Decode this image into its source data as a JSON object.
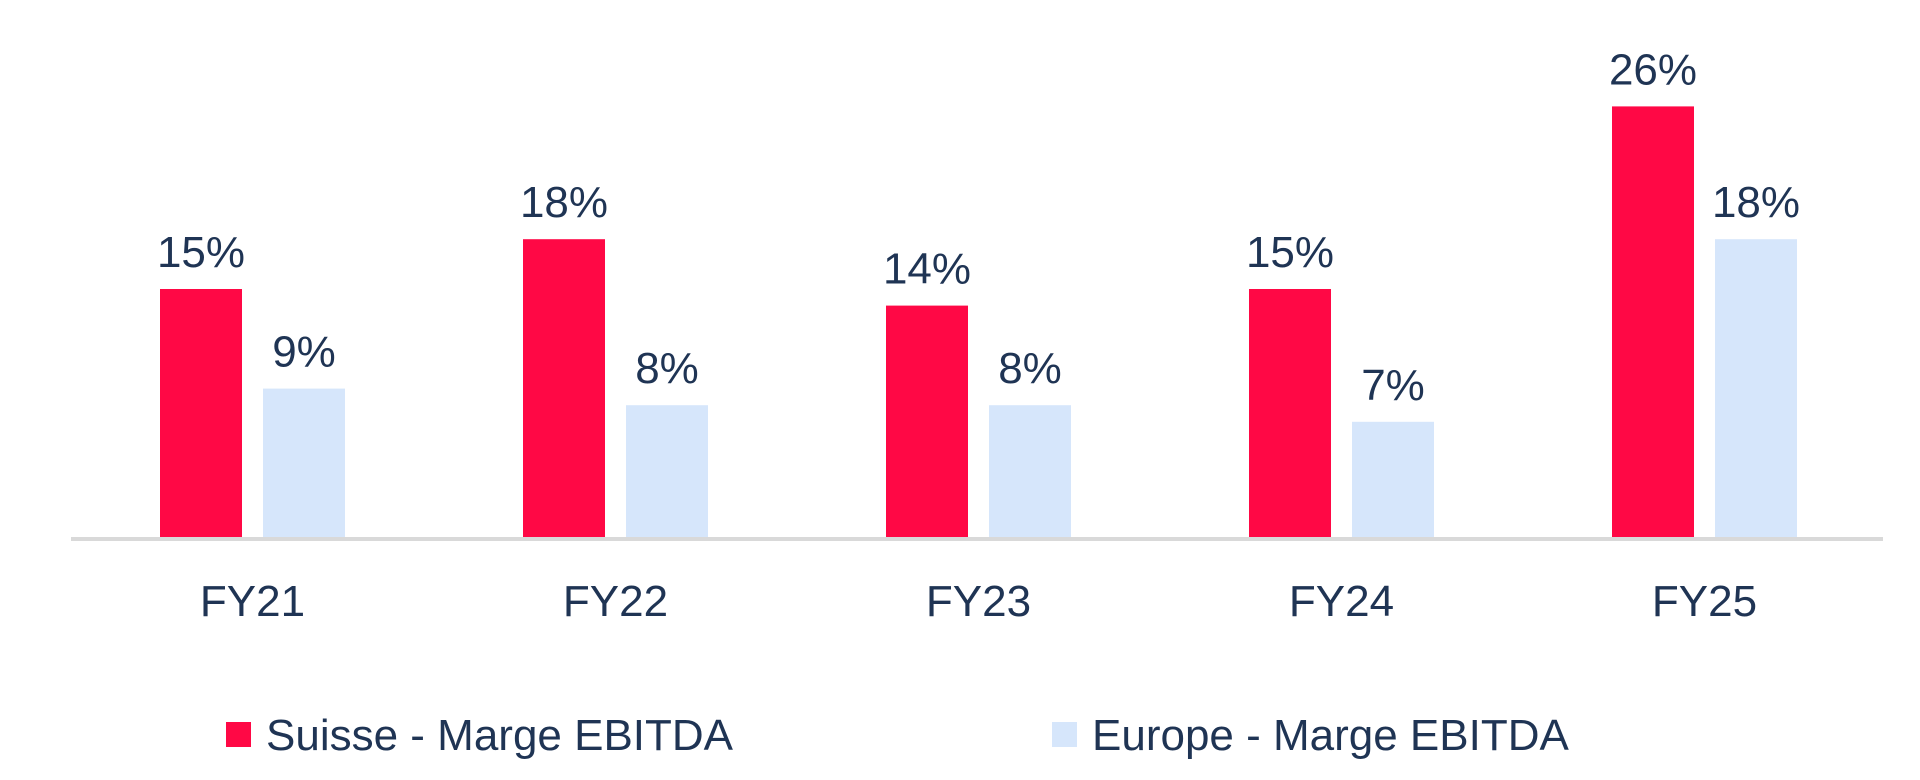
{
  "chart_data": {
    "type": "bar",
    "categories": [
      "FY21",
      "FY22",
      "FY23",
      "FY24",
      "FY25"
    ],
    "series": [
      {
        "name": "Suisse - Marge EBITDA",
        "values": [
          15,
          18,
          14,
          15,
          26
        ],
        "labels": [
          "15%",
          "18%",
          "14%",
          "15%",
          "26%"
        ],
        "color": "#ff0845"
      },
      {
        "name": "Europe - Marge EBITDA",
        "values": [
          9,
          8,
          8,
          7,
          18
        ],
        "labels": [
          "9%",
          "8%",
          "8%",
          "7%",
          "18%"
        ],
        "color": "#d6e6fb"
      }
    ],
    "ylim": [
      0,
      27
    ],
    "grid": false,
    "legend": "bottom",
    "text_color": "#1f3454",
    "axis_color": "#d9d9d9"
  }
}
